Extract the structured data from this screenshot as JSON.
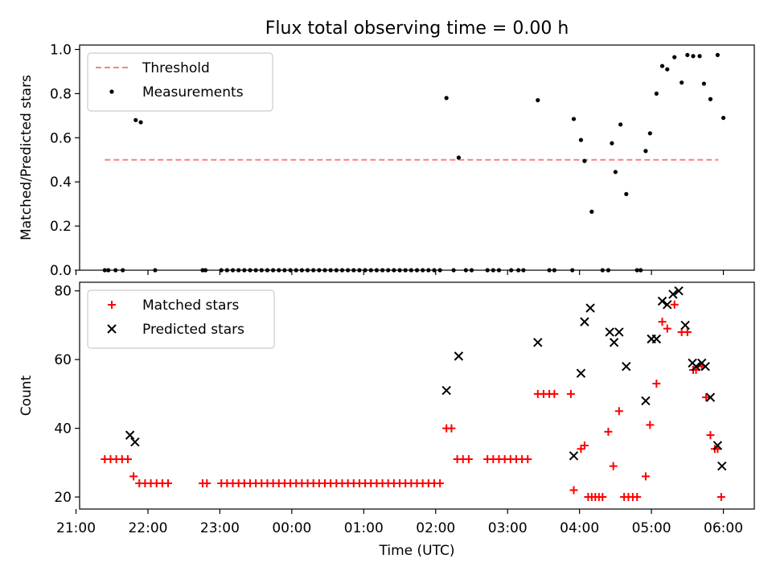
{
  "chart_data": [
    {
      "type": "scatter",
      "title": "Flux total observing time = 0.00 h",
      "xlabel": "",
      "ylabel": "Matched/Predicted stars",
      "xlim": [
        -2.95,
        6.43
      ],
      "ylim": [
        0,
        1.02
      ],
      "yticks": [
        0.0,
        0.2,
        0.4,
        0.6,
        0.8,
        1.0
      ],
      "ytick_labels": [
        "0.0",
        "0.2",
        "0.4",
        "0.6",
        "0.8",
        "1.0"
      ],
      "xticks": [
        -3,
        -2,
        -1,
        0,
        1,
        2,
        3,
        4,
        5,
        6
      ],
      "legend_position": "top-left",
      "threshold": {
        "label": "Threshold",
        "value": 0.5,
        "x_range": [
          -2.6,
          5.93
        ],
        "color": "#ff7f7f"
      },
      "series": [
        {
          "name": "Measurements",
          "marker": "dot",
          "color": "#000000",
          "x": [
            -2.6,
            -2.55,
            -2.45,
            -2.35,
            -2.17,
            -2.1,
            -1.9,
            -1.24,
            -1.2,
            -0.98,
            -0.9,
            -0.82,
            -0.74,
            -0.66,
            -0.58,
            -0.5,
            -0.42,
            -0.34,
            -0.26,
            -0.18,
            -0.1,
            -0.02,
            0.06,
            0.14,
            0.22,
            0.3,
            0.38,
            0.46,
            0.54,
            0.62,
            0.7,
            0.78,
            0.86,
            0.94,
            1.02,
            1.1,
            1.18,
            1.26,
            1.34,
            1.42,
            1.5,
            1.58,
            1.66,
            1.74,
            1.82,
            1.9,
            1.98,
            2.06,
            2.15,
            2.25,
            2.32,
            2.42,
            2.5,
            2.72,
            2.8,
            2.88,
            3.05,
            3.15,
            3.22,
            3.42,
            3.58,
            3.65,
            3.9,
            3.92,
            4.02,
            4.07,
            4.17,
            4.32,
            4.4,
            4.45,
            4.5,
            4.57,
            4.65,
            4.8,
            4.85,
            4.92,
            4.98,
            5.07,
            5.15,
            5.22,
            5.32,
            5.42,
            5.5,
            5.58,
            5.67,
            5.73,
            5.82,
            5.92,
            6.0
          ],
          "y": [
            0,
            0,
            0,
            0,
            0.68,
            0.67,
            0,
            0,
            0,
            0,
            0,
            0,
            0,
            0,
            0,
            0,
            0,
            0,
            0,
            0,
            0,
            0,
            0,
            0,
            0,
            0,
            0,
            0,
            0,
            0,
            0,
            0,
            0,
            0,
            0,
            0,
            0,
            0,
            0,
            0,
            0,
            0,
            0,
            0,
            0,
            0,
            0,
            0,
            0.78,
            0,
            0.51,
            0,
            0,
            0,
            0,
            0,
            0,
            0,
            0,
            0.77,
            0,
            0,
            0,
            0.685,
            0.59,
            0.495,
            0.265,
            0,
            0,
            0.575,
            0.445,
            0.66,
            0.345,
            0,
            0,
            0.54,
            0.62,
            0.8,
            0.925,
            0.91,
            0.965,
            0.85,
            0.975,
            0.97,
            0.97,
            0.845,
            0.775,
            0.975,
            0.69
          ]
        }
      ]
    },
    {
      "type": "scatter",
      "title": "",
      "xlabel": "Time (UTC)",
      "ylabel": "Count",
      "xlim": [
        -2.95,
        6.43
      ],
      "ylim": [
        16.5,
        82.5
      ],
      "yticks": [
        20,
        40,
        60,
        80
      ],
      "ytick_labels": [
        "20",
        "40",
        "60",
        "80"
      ],
      "xticks": [
        -3,
        -2,
        -1,
        0,
        1,
        2,
        3,
        4,
        5,
        6
      ],
      "xtick_labels": [
        "21:00",
        "22:00",
        "23:00",
        "00:00",
        "01:00",
        "02:00",
        "03:00",
        "04:00",
        "05:00",
        "06:00"
      ],
      "legend_position": "top-left",
      "series": [
        {
          "name": "Matched stars",
          "marker": "plus",
          "color": "#ff0000",
          "x": [
            -2.6,
            -2.52,
            -2.44,
            -2.36,
            -2.28,
            -2.2,
            -2.12,
            -2.04,
            -1.96,
            -1.88,
            -1.8,
            -1.72,
            -1.24,
            -1.18,
            -0.98,
            -0.9,
            -0.82,
            -0.74,
            -0.66,
            -0.58,
            -0.5,
            -0.42,
            -0.34,
            -0.26,
            -0.18,
            -0.1,
            -0.02,
            0.06,
            0.14,
            0.22,
            0.3,
            0.38,
            0.46,
            0.54,
            0.62,
            0.7,
            0.78,
            0.86,
            0.94,
            1.02,
            1.1,
            1.18,
            1.26,
            1.34,
            1.42,
            1.5,
            1.58,
            1.66,
            1.74,
            1.82,
            1.9,
            1.98,
            2.06,
            2.15,
            2.22,
            2.3,
            2.38,
            2.46,
            2.72,
            2.8,
            2.88,
            2.96,
            3.04,
            3.12,
            3.2,
            3.28,
            3.42,
            3.5,
            3.58,
            3.65,
            3.88,
            3.92,
            4.02,
            4.07,
            4.12,
            4.17,
            4.22,
            4.27,
            4.32,
            4.4,
            4.47,
            4.55,
            4.62,
            4.68,
            4.74,
            4.8,
            4.92,
            4.98,
            5.07,
            5.15,
            5.22,
            5.32,
            5.42,
            5.5,
            5.58,
            5.62,
            5.7,
            5.76,
            5.82,
            5.88,
            5.92,
            5.97
          ],
          "y": [
            31,
            31,
            31,
            31,
            31,
            26,
            24,
            24,
            24,
            24,
            24,
            24,
            24,
            24,
            24,
            24,
            24,
            24,
            24,
            24,
            24,
            24,
            24,
            24,
            24,
            24,
            24,
            24,
            24,
            24,
            24,
            24,
            24,
            24,
            24,
            24,
            24,
            24,
            24,
            24,
            24,
            24,
            24,
            24,
            24,
            24,
            24,
            24,
            24,
            24,
            24,
            24,
            24,
            40,
            40,
            31,
            31,
            31,
            31,
            31,
            31,
            31,
            31,
            31,
            31,
            31,
            50,
            50,
            50,
            50,
            50,
            22,
            34,
            35,
            20,
            20,
            20,
            20,
            20,
            39,
            29,
            45,
            20,
            20,
            20,
            20,
            26,
            41,
            53,
            71,
            69,
            76,
            68,
            68,
            57,
            57,
            58,
            49,
            38,
            34,
            34,
            20
          ]
        },
        {
          "name": "Predicted stars",
          "marker": "x",
          "color": "#000000",
          "x": [
            -2.25,
            -2.18,
            2.15,
            2.32,
            3.42,
            3.92,
            4.02,
            4.07,
            4.15,
            4.42,
            4.48,
            4.55,
            4.65,
            4.92,
            5.0,
            5.07,
            5.15,
            5.22,
            5.3,
            5.38,
            5.47,
            5.57,
            5.62,
            5.7,
            5.75,
            5.82,
            5.92,
            5.98
          ],
          "y": [
            38,
            36,
            51,
            61,
            65,
            32,
            56,
            71,
            75,
            68,
            65,
            68,
            58,
            48,
            66,
            66,
            77,
            76,
            79,
            80,
            70,
            59,
            58,
            59,
            58,
            49,
            35,
            29
          ]
        }
      ]
    }
  ]
}
